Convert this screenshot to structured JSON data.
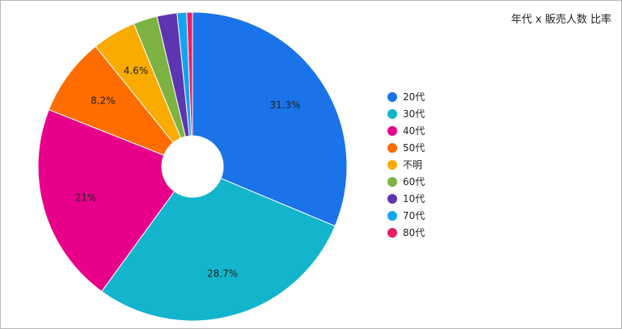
{
  "chart_data": {
    "type": "pie",
    "title": "年代 x 販売人数 比率",
    "categories": [
      "20代",
      "30代",
      "40代",
      "50代",
      "不明",
      "60代",
      "10代",
      "70代",
      "80代"
    ],
    "values": [
      31.3,
      28.7,
      21.0,
      8.2,
      4.6,
      2.5,
      2.1,
      1.0,
      0.6
    ],
    "data_labels": [
      "31.3%",
      "28.7%",
      "21%",
      "8.2%",
      "4.6%",
      "",
      "",
      "",
      ""
    ],
    "colors": [
      "#1a73e8",
      "#12b5cb",
      "#e8008a",
      "#ff6d01",
      "#f9ab00",
      "#7cb342",
      "#5e35b1",
      "#12a4f0",
      "#e91e63"
    ],
    "legend_position": "right",
    "donut_hole": true
  }
}
